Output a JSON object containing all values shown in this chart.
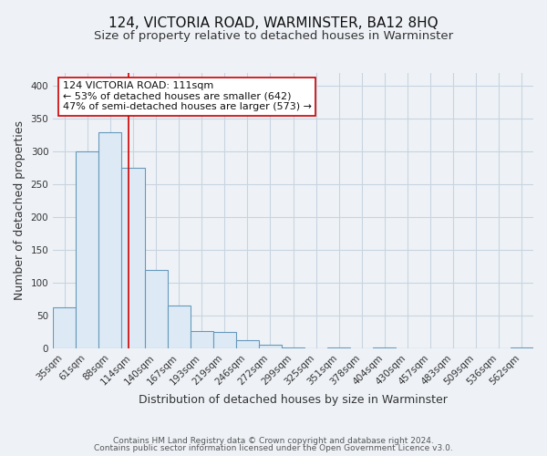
{
  "title": "124, VICTORIA ROAD, WARMINSTER, BA12 8HQ",
  "subtitle": "Size of property relative to detached houses in Warminster",
  "xlabel": "Distribution of detached houses by size in Warminster",
  "ylabel": "Number of detached properties",
  "categories": [
    "35sqm",
    "61sqm",
    "88sqm",
    "114sqm",
    "140sqm",
    "167sqm",
    "193sqm",
    "219sqm",
    "246sqm",
    "272sqm",
    "299sqm",
    "325sqm",
    "351sqm",
    "378sqm",
    "404sqm",
    "430sqm",
    "457sqm",
    "483sqm",
    "509sqm",
    "536sqm",
    "562sqm"
  ],
  "values": [
    63,
    300,
    330,
    275,
    120,
    65,
    27,
    25,
    13,
    5,
    1,
    0,
    1,
    0,
    1,
    0,
    0,
    0,
    0,
    0,
    1
  ],
  "bar_color": "#ddeaf5",
  "bar_edge_color": "#6699bb",
  "vline_color": "#cc0000",
  "vline_x_index": 2.82,
  "ylim": [
    0,
    420
  ],
  "yticks": [
    0,
    50,
    100,
    150,
    200,
    250,
    300,
    350,
    400
  ],
  "annotation_text": "124 VICTORIA ROAD: 111sqm\n← 53% of detached houses are smaller (642)\n47% of semi-detached houses are larger (573) →",
  "footer_line1": "Contains HM Land Registry data © Crown copyright and database right 2024.",
  "footer_line2": "Contains public sector information licensed under the Open Government Licence v3.0.",
  "background_color": "#eef2f7",
  "grid_color": "#c8d4e0",
  "title_fontsize": 11,
  "subtitle_fontsize": 9.5,
  "axis_label_fontsize": 9,
  "tick_fontsize": 7.5,
  "annotation_fontsize": 8,
  "footer_fontsize": 6.5
}
